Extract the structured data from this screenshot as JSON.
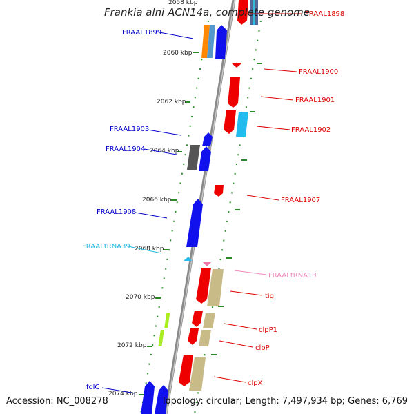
{
  "title": "Frankia alni ACN14a, complete genome",
  "footer": {
    "accession": "Accession: NC_008278",
    "summary": "Topology: circular; Length: 7,497,934 bp; Genes: 6,769"
  },
  "colors": {
    "backbone": "#8a8a8a",
    "tick": "#2a8a2a",
    "label_blue": "#0000cc",
    "label_red": "#dd0000",
    "label_cyan": "#22bbdd",
    "label_pink": "#ee88bb"
  },
  "ticks": [
    {
      "label": "2058 kbp"
    },
    {
      "label": "2060 kbp"
    },
    {
      "label": "2062 kbp"
    },
    {
      "label": "2064 kbp"
    },
    {
      "label": "2066 kbp"
    },
    {
      "label": "2068 kbp"
    },
    {
      "label": "2070 kbp"
    },
    {
      "label": "2072 kbp"
    },
    {
      "label": "2074 kbp"
    }
  ],
  "gene_labels": [
    {
      "text": "FRAAL1898",
      "color": "label_red"
    },
    {
      "text": "FRAAL1899",
      "color": "label_blue"
    },
    {
      "text": "FRAAL1900",
      "color": "label_red"
    },
    {
      "text": "FRAAL1901",
      "color": "label_red"
    },
    {
      "text": "FRAAL1902",
      "color": "label_red"
    },
    {
      "text": "FRAAL1903",
      "color": "label_blue"
    },
    {
      "text": "FRAAL1904",
      "color": "label_blue"
    },
    {
      "text": "FRAAL1907",
      "color": "label_red"
    },
    {
      "text": "FRAAL1908",
      "color": "label_blue"
    },
    {
      "text": "FRAALtRNA39",
      "color": "label_cyan"
    },
    {
      "text": "FRAALtRNA13",
      "color": "label_pink"
    },
    {
      "text": "tig",
      "color": "label_red"
    },
    {
      "text": "clpP1",
      "color": "label_red"
    },
    {
      "text": "clpP",
      "color": "label_red"
    },
    {
      "text": "clpX",
      "color": "label_red"
    },
    {
      "text": "folC",
      "color": "label_blue"
    }
  ]
}
